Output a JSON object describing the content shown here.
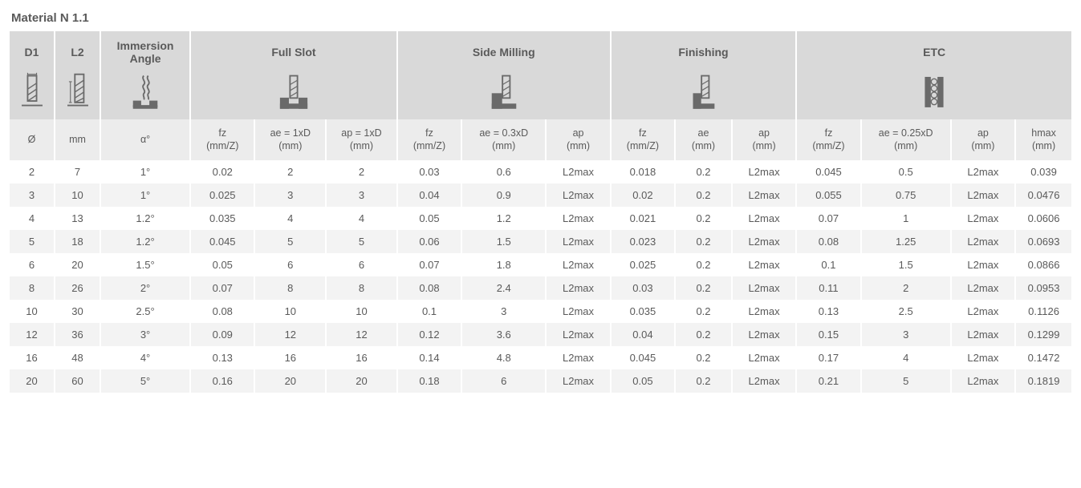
{
  "title": "Material N 1.1",
  "colors": {
    "header_dark": "#d9d9d9",
    "header_light": "#ececec",
    "row_even": "#f3f3f3",
    "row_odd": "#ffffff",
    "text": "#5a5a5a",
    "icon": "#6a6a6a"
  },
  "groups": {
    "d1": {
      "label": "D1",
      "icon": "d1-icon"
    },
    "l2": {
      "label": "L2",
      "icon": "l2-icon"
    },
    "immersion": {
      "label": "Immersion Angle",
      "icon": "immersion-icon"
    },
    "fullslot": {
      "label": "Full Slot",
      "icon": "full-slot-icon",
      "span": 3
    },
    "sidemill": {
      "label": "Side Milling",
      "icon": "side-milling-icon",
      "span": 3
    },
    "finishing": {
      "label": "Finishing",
      "icon": "finishing-icon",
      "span": 3
    },
    "etc": {
      "label": "ETC",
      "icon": "etc-icon",
      "span": 4
    }
  },
  "subheaders": [
    "Ø",
    "mm",
    "α°",
    "fz\n(mm/Z)",
    "ae = 1xD\n(mm)",
    "ap = 1xD\n(mm)",
    "fz\n(mm/Z)",
    "ae = 0.3xD\n(mm)",
    "ap\n(mm)",
    "fz\n(mm/Z)",
    "ae\n(mm)",
    "ap\n(mm)",
    "fz\n(mm/Z)",
    "ae = 0.25xD\n(mm)",
    "ap\n(mm)",
    "hmax\n(mm)"
  ],
  "column_widths_pct": [
    4.0,
    4.0,
    8.0,
    5.7,
    6.3,
    6.3,
    5.7,
    7.5,
    5.7,
    5.7,
    5.0,
    5.7,
    5.7,
    8.0,
    5.7,
    5.0
  ],
  "rows": [
    [
      "2",
      "7",
      "1°",
      "0.02",
      "2",
      "2",
      "0.03",
      "0.6",
      "L2max",
      "0.018",
      "0.2",
      "L2max",
      "0.045",
      "0.5",
      "L2max",
      "0.039"
    ],
    [
      "3",
      "10",
      "1°",
      "0.025",
      "3",
      "3",
      "0.04",
      "0.9",
      "L2max",
      "0.02",
      "0.2",
      "L2max",
      "0.055",
      "0.75",
      "L2max",
      "0.0476"
    ],
    [
      "4",
      "13",
      "1.2°",
      "0.035",
      "4",
      "4",
      "0.05",
      "1.2",
      "L2max",
      "0.021",
      "0.2",
      "L2max",
      "0.07",
      "1",
      "L2max",
      "0.0606"
    ],
    [
      "5",
      "18",
      "1.2°",
      "0.045",
      "5",
      "5",
      "0.06",
      "1.5",
      "L2max",
      "0.023",
      "0.2",
      "L2max",
      "0.08",
      "1.25",
      "L2max",
      "0.0693"
    ],
    [
      "6",
      "20",
      "1.5°",
      "0.05",
      "6",
      "6",
      "0.07",
      "1.8",
      "L2max",
      "0.025",
      "0.2",
      "L2max",
      "0.1",
      "1.5",
      "L2max",
      "0.0866"
    ],
    [
      "8",
      "26",
      "2°",
      "0.07",
      "8",
      "8",
      "0.08",
      "2.4",
      "L2max",
      "0.03",
      "0.2",
      "L2max",
      "0.11",
      "2",
      "L2max",
      "0.0953"
    ],
    [
      "10",
      "30",
      "2.5°",
      "0.08",
      "10",
      "10",
      "0.1",
      "3",
      "L2max",
      "0.035",
      "0.2",
      "L2max",
      "0.13",
      "2.5",
      "L2max",
      "0.1126"
    ],
    [
      "12",
      "36",
      "3°",
      "0.09",
      "12",
      "12",
      "0.12",
      "3.6",
      "L2max",
      "0.04",
      "0.2",
      "L2max",
      "0.15",
      "3",
      "L2max",
      "0.1299"
    ],
    [
      "16",
      "48",
      "4°",
      "0.13",
      "16",
      "16",
      "0.14",
      "4.8",
      "L2max",
      "0.045",
      "0.2",
      "L2max",
      "0.17",
      "4",
      "L2max",
      "0.1472"
    ],
    [
      "20",
      "60",
      "5°",
      "0.16",
      "20",
      "20",
      "0.18",
      "6",
      "L2max",
      "0.05",
      "0.2",
      "L2max",
      "0.21",
      "5",
      "L2max",
      "0.1819"
    ]
  ]
}
